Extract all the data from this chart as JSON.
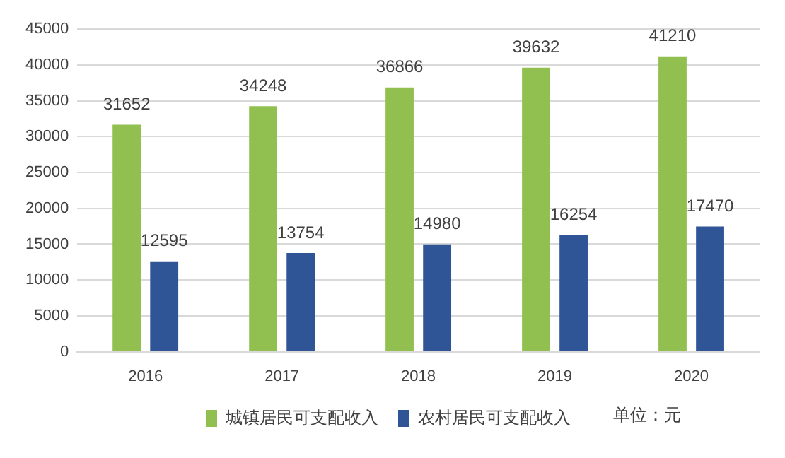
{
  "chart_data": {
    "type": "bar",
    "categories": [
      "2016",
      "2017",
      "2018",
      "2019",
      "2020"
    ],
    "series": [
      {
        "name": "城镇居民可支配收入",
        "color": "#92c050",
        "values": [
          31652,
          34248,
          36866,
          39632,
          41210
        ]
      },
      {
        "name": "农村居民可支配收入",
        "color": "#2f5597",
        "values": [
          12595,
          13754,
          14980,
          16254,
          17470
        ]
      }
    ],
    "ylim": [
      0,
      45000
    ],
    "yticks": [
      0,
      5000,
      10000,
      15000,
      20000,
      25000,
      30000,
      35000,
      40000,
      45000
    ],
    "grid": "y",
    "legend": "bottom",
    "data_labels": true,
    "annotations": [
      "单位：元"
    ]
  }
}
